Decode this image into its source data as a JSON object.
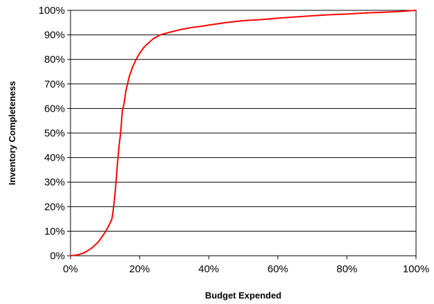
{
  "chart_data": {
    "type": "line",
    "title": "",
    "xlabel": "Budget Expended",
    "ylabel": "Inventory Completeness",
    "xlim": [
      0,
      100
    ],
    "ylim": [
      0,
      100
    ],
    "x_ticks": [
      "0%",
      "20%",
      "40%",
      "60%",
      "80%",
      "100%"
    ],
    "y_ticks": [
      "0%",
      "10%",
      "20%",
      "30%",
      "40%",
      "50%",
      "60%",
      "70%",
      "80%",
      "90%",
      "100%"
    ],
    "grid": "horizontal",
    "legend": "none",
    "series": [
      {
        "color": "#ff0000",
        "x": [
          0,
          2,
          4,
          6,
          8,
          10,
          11,
          12,
          12.5,
          13,
          13.5,
          14,
          14.5,
          15,
          15.5,
          16,
          16.5,
          17,
          18,
          19,
          20,
          21,
          22,
          24,
          26,
          28,
          30,
          32,
          35,
          38,
          40,
          45,
          50,
          55,
          60,
          65,
          70,
          75,
          80,
          85,
          90,
          95,
          100
        ],
        "y": [
          0,
          0.3,
          1.2,
          3,
          5.5,
          9.5,
          12,
          15,
          20,
          27,
          36,
          44,
          50,
          59,
          62,
          67,
          70,
          73,
          77,
          80,
          82.5,
          84.5,
          86,
          88.5,
          90,
          90.8,
          91.5,
          92.2,
          93,
          93.5,
          94,
          95,
          95.8,
          96.2,
          96.8,
          97.3,
          97.8,
          98.2,
          98.5,
          98.9,
          99.2,
          99.5,
          100
        ]
      }
    ]
  }
}
